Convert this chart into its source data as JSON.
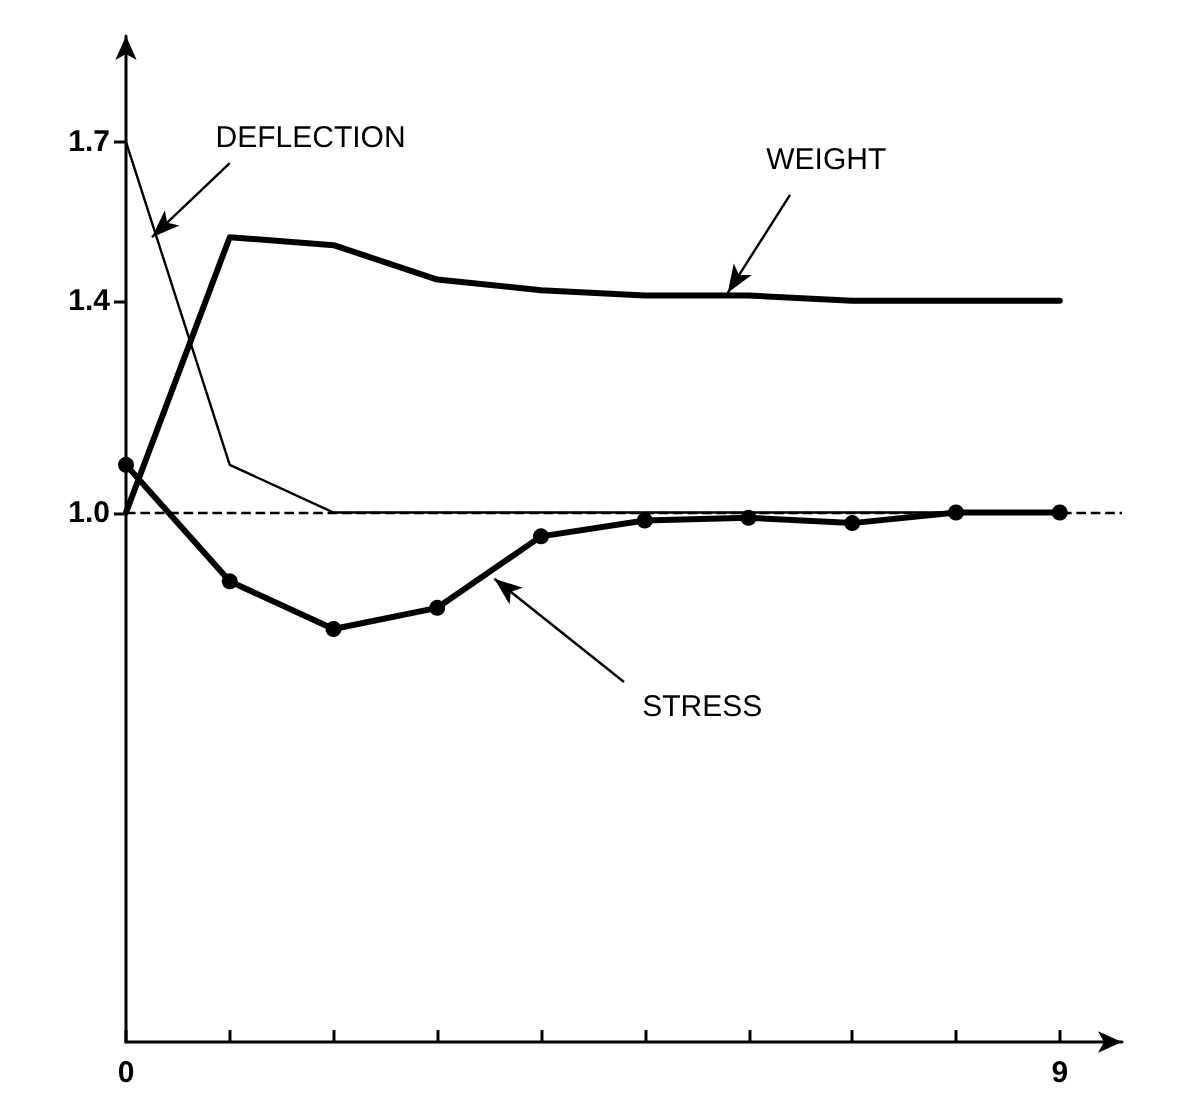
{
  "chart_data": {
    "type": "line",
    "x": [
      0,
      1,
      2,
      3,
      4,
      5,
      6,
      7,
      8,
      9
    ],
    "series": [
      {
        "name": "DEFLECTION",
        "color": "#000000",
        "marker": "none",
        "values": [
          1.7,
          1.09,
          1.0,
          1.0,
          1.0,
          1.0,
          1.0,
          1.0,
          1.0,
          1.0
        ]
      },
      {
        "name": "WEIGHT",
        "color": "#000000",
        "marker": "none",
        "values": [
          1.0,
          1.52,
          1.505,
          1.44,
          1.42,
          1.41,
          1.41,
          1.4,
          1.4,
          1.4
        ]
      },
      {
        "name": "STRESS",
        "color": "#000000",
        "marker": "circle",
        "values": [
          1.09,
          0.87,
          0.78,
          0.82,
          0.955,
          0.985,
          0.99,
          0.98,
          1.0,
          1.0
        ]
      }
    ],
    "xlim": [
      0,
      9.6
    ],
    "xticks": [
      0,
      {
        "value": 1,
        "label": null
      },
      {
        "value": 2,
        "label": null
      },
      {
        "value": 3,
        "label": null
      },
      {
        "value": 4,
        "label": null
      },
      {
        "value": 5,
        "label": null
      },
      {
        "value": 6,
        "label": null
      },
      {
        "value": 7,
        "label": null
      },
      {
        "value": 8,
        "label": null
      },
      {
        "value": 9,
        "label": "9"
      }
    ],
    "ylim": [
      0,
      1.9
    ],
    "yticks": [
      {
        "value": 1,
        "label": "1.0"
      },
      {
        "value": 1.4,
        "label": "1.4"
      },
      {
        "value": 1.7,
        "label": "1.7"
      }
    ],
    "ref_lines": [
      {
        "axis": "y",
        "value": 1,
        "label": null,
        "color": "#000000",
        "line_style": "dashed"
      }
    ],
    "grid": false,
    "legend": false,
    "line_style": "solid"
  }
}
